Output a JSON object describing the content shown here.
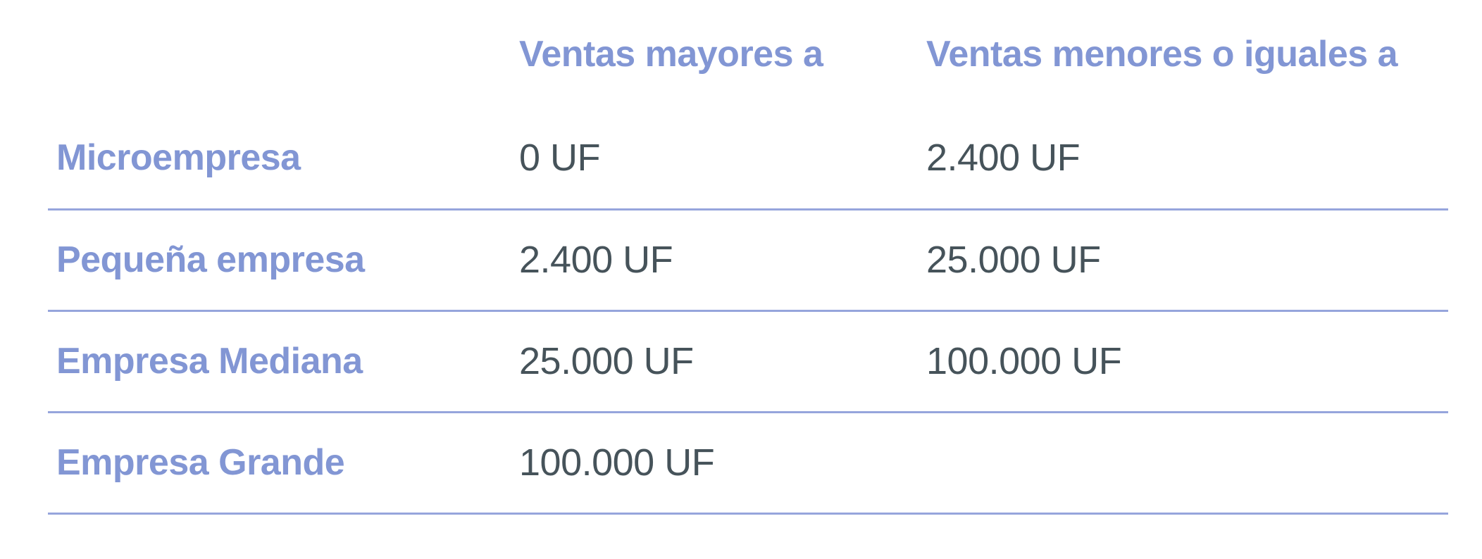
{
  "table": {
    "header": {
      "col1": "",
      "col2": "Ventas mayores a",
      "col3": "Ventas menores o iguales a"
    },
    "rows": [
      {
        "label": "Microempresa",
        "ventas_mayores": "0 UF",
        "ventas_menores_o_iguales": "2.400 UF"
      },
      {
        "label": "Pequeña empresa",
        "ventas_mayores": "2.400 UF",
        "ventas_menores_o_iguales": "25.000 UF"
      },
      {
        "label": "Empresa Mediana",
        "ventas_mayores": "25.000 UF",
        "ventas_menores_o_iguales": "100.000 UF"
      },
      {
        "label": "Empresa Grande",
        "ventas_mayores": "100.000 UF",
        "ventas_menores_o_iguales": ""
      }
    ],
    "unit": "UF"
  },
  "colors": {
    "heading_blue": "#8296d4",
    "value_dark": "#46535a",
    "divider_blue": "#96a5dc",
    "background": "#ffffff"
  }
}
